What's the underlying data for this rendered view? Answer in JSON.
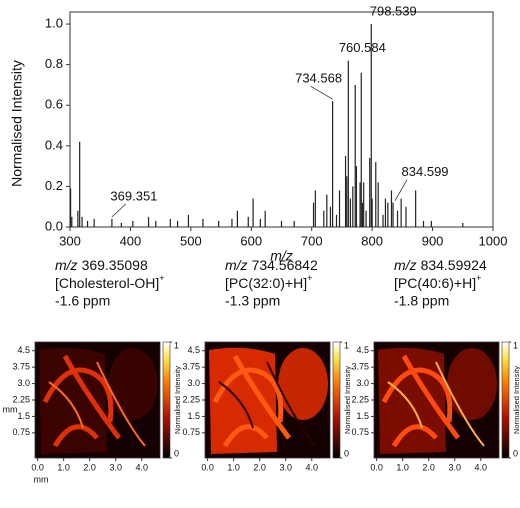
{
  "chart_data": [
    {
      "type": "stem",
      "ylabel": "Normalised Intensity",
      "xlabel": "m/z",
      "color": "#222222",
      "x": [
        301,
        303,
        313,
        316,
        320,
        329,
        340,
        369.351,
        385,
        404,
        430,
        442,
        466,
        478,
        496,
        520,
        546,
        568,
        577,
        595,
        603,
        615,
        623,
        650,
        671,
        703,
        706,
        720,
        725,
        731,
        734.568,
        741,
        746,
        756,
        758,
        760.584,
        764,
        768,
        772,
        774,
        780,
        782,
        784,
        786,
        790,
        796,
        798.539,
        800,
        806,
        810,
        818,
        822,
        826,
        832,
        834.599,
        842,
        848,
        856,
        872,
        885,
        898,
        950
      ],
      "values": [
        0.19,
        0.05,
        0.08,
        0.42,
        0.05,
        0.03,
        0.04,
        0.04,
        0.02,
        0.03,
        0.05,
        0.03,
        0.04,
        0.03,
        0.06,
        0.04,
        0.03,
        0.04,
        0.08,
        0.05,
        0.14,
        0.04,
        0.08,
        0.03,
        0.03,
        0.12,
        0.18,
        0.08,
        0.16,
        0.1,
        0.62,
        0.06,
        0.18,
        0.35,
        0.25,
        0.82,
        0.14,
        0.2,
        0.7,
        0.3,
        0.22,
        0.76,
        0.12,
        0.22,
        0.08,
        0.34,
        1.0,
        0.14,
        0.32,
        0.22,
        0.06,
        0.14,
        0.12,
        0.18,
        0.12,
        0.08,
        0.14,
        0.1,
        0.18,
        0.03,
        0.03,
        0.02
      ],
      "annotations": [
        {
          "text": "369.351",
          "x": 369.351,
          "y": 0.04
        },
        {
          "text": "734.568",
          "x": 734.568,
          "y": 0.62
        },
        {
          "text": "760.584",
          "x": 760.584,
          "y": 0.82
        },
        {
          "text": "798.539",
          "x": 798.539,
          "y": 1.0
        },
        {
          "text": "834.599",
          "x": 834.599,
          "y": 0.12
        }
      ],
      "xlim": [
        300,
        1000
      ],
      "xticks": [
        300,
        400,
        500,
        600,
        700,
        800,
        900,
        1000
      ],
      "ylim": [
        0,
        1.02
      ],
      "yticks": [
        {
          "value": 0,
          "label": "0.0"
        },
        0.2,
        0.4,
        0.6,
        0.8,
        {
          "value": 1,
          "label": "1.0"
        }
      ]
    },
    {
      "type": "ms-image",
      "title_italic": "m/z",
      "title": "369.35098",
      "ion": "[Cholesterol-OH]",
      "superscript": "+",
      "ppm": "-1.6 ppm",
      "xlabel": "mm",
      "ylabel": "mm",
      "xlim": [
        -0.1,
        4.7
      ],
      "xticks": [
        {
          "value": 0,
          "label": "0.0"
        },
        {
          "value": 1,
          "label": "1.0"
        },
        {
          "value": 2,
          "label": "2.0"
        },
        {
          "value": 3,
          "label": "3.0"
        },
        {
          "value": 4,
          "label": "4.0"
        }
      ],
      "ylim": [
        -0.4,
        4.9
      ],
      "yticks": [
        0.75,
        1.5,
        2.25,
        {
          "value": 3,
          "label": "3.0"
        },
        3.75,
        4.5
      ],
      "colorbar": {
        "label": "Normalised Intensity",
        "ticks": [
          0,
          1
        ]
      }
    },
    {
      "type": "ms-image",
      "title_italic": "m/z",
      "title": "734.56842",
      "ion": "[PC(32:0)+H]",
      "superscript": "+",
      "ppm": "-1.3 ppm",
      "xlim": [
        -0.1,
        4.7
      ],
      "xticks": [
        {
          "value": 0,
          "label": "0.0"
        },
        {
          "value": 1,
          "label": "1.0"
        },
        {
          "value": 2,
          "label": "2.0"
        },
        {
          "value": 3,
          "label": "3.0"
        },
        {
          "value": 4,
          "label": "4.0"
        }
      ],
      "ylim": [
        -0.4,
        4.9
      ],
      "yticks": [
        0.75,
        1.5,
        2.25,
        {
          "value": 3,
          "label": "3.0"
        },
        3.75,
        4.5
      ],
      "colorbar": {
        "label": "Normalised Intensity",
        "ticks": [
          0,
          1
        ]
      }
    },
    {
      "type": "ms-image",
      "title_italic": "m/z",
      "title": "834.59924",
      "ion": "[PC(40:6)+H]",
      "superscript": "+",
      "ppm": "-1.8 ppm",
      "xlim": [
        -0.1,
        4.7
      ],
      "xticks": [
        {
          "value": 0,
          "label": "0.0"
        },
        {
          "value": 1,
          "label": "1.0"
        },
        {
          "value": 2,
          "label": "2.0"
        },
        {
          "value": 3,
          "label": "3.0"
        },
        {
          "value": 4,
          "label": "4.0"
        }
      ],
      "ylim": [
        -0.4,
        4.9
      ],
      "yticks": [
        0.75,
        1.5,
        2.25,
        {
          "value": 3,
          "label": "3.0"
        },
        3.75,
        4.5
      ],
      "colorbar": {
        "label": "Normalised Intensity",
        "ticks": [
          0,
          1
        ]
      }
    }
  ]
}
